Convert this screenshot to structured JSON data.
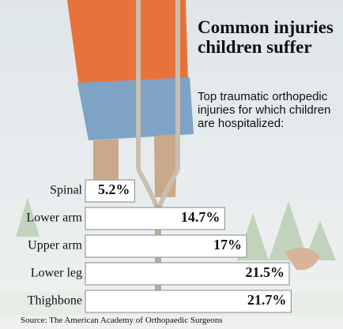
{
  "chart_data": {
    "type": "bar",
    "orientation": "horizontal",
    "title": "Common injuries children suffer",
    "subtitle": "Top traumatic orthopedic injuries for which children are hospitalized:",
    "source": "Source: The American Academy of Orthopaedic Surgeons",
    "categories": [
      "Spinal",
      "Lower arm",
      "Upper arm",
      "Lower leg",
      "Thighbone"
    ],
    "values": [
      5.2,
      14.7,
      17,
      21.5,
      21.7
    ],
    "value_labels": [
      "5.2%",
      "14.7%",
      "17%",
      "21.5%",
      "21.7%"
    ],
    "color": "#ffffff"
  }
}
